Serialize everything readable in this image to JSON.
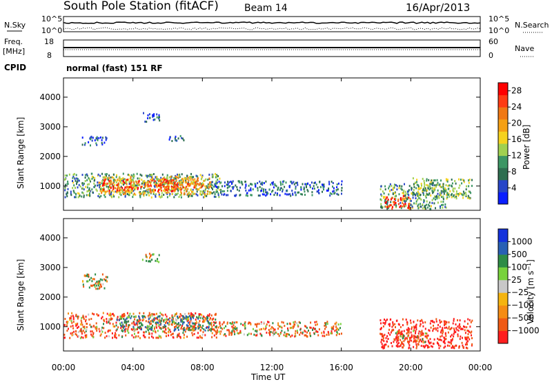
{
  "header": {
    "station": "South Pole Station (fitACF)",
    "beam": "Beam 14",
    "date": "16/Apr/2013",
    "cpid_label": "CPID",
    "program": "normal (fast) 151 RF"
  },
  "top_panel": {
    "left_label": "N.Sky",
    "right_label": "N.Search",
    "left_ticks": [
      "10^5",
      "10^0"
    ],
    "right_ticks": [
      "10^5",
      "10^0"
    ]
  },
  "freq_panel": {
    "left_label_1": "Freq.",
    "left_label_2": "[MHz]",
    "right_label": "Nave",
    "left_ticks": [
      "18",
      "8"
    ],
    "right_ticks": [
      "60",
      "0"
    ]
  },
  "colors": {
    "power": [
      "#0a1eff",
      "#2846c8",
      "#2e6e50",
      "#3c9664",
      "#a0d050",
      "#f5d21e",
      "#f5a014",
      "#f07814",
      "#ff3c14",
      "#ff0000"
    ],
    "velocity": [
      "#ff1e1e",
      "#f05a14",
      "#f58c14",
      "#f5b40f",
      "#c8c8c8",
      "#78d23c",
      "#2e8c46",
      "#2860b4",
      "#1432dc"
    ]
  },
  "chart_data": [
    {
      "type": "heatmap",
      "name": "power",
      "title": "",
      "xlabel": "",
      "ylabel": "Slant Range [km]",
      "x_ticks": [
        "00:00",
        "04:00",
        "08:00",
        "12:00",
        "16:00",
        "20:00",
        "00:00"
      ],
      "y_ticks": [
        "1000",
        "2000",
        "3000",
        "4000"
      ],
      "xlim": [
        0,
        24
      ],
      "ylim": [
        180,
        4650
      ],
      "colorbar_label": "Power [dB]",
      "colorbar_ticks": [
        "4",
        "8",
        "12",
        "16",
        "20",
        "24",
        "28"
      ],
      "colorbar_range": [
        0,
        30
      ],
      "regions": [
        {
          "t": [
            0,
            9
          ],
          "r": [
            650,
            1450
          ],
          "value": 10
        },
        {
          "t": [
            2,
            8.5
          ],
          "r": [
            750,
            1350
          ],
          "value": 18
        },
        {
          "t": [
            2.2,
            6.5
          ],
          "r": [
            850,
            1250
          ],
          "value": 26
        },
        {
          "t": [
            5.5,
            8
          ],
          "r": [
            900,
            1300
          ],
          "value": 22
        },
        {
          "t": [
            8.5,
            16
          ],
          "r": [
            700,
            1200
          ],
          "value": 6
        },
        {
          "t": [
            1,
            2.5
          ],
          "r": [
            2400,
            2700
          ],
          "value": 5
        },
        {
          "t": [
            4.5,
            5.5
          ],
          "r": [
            3200,
            3500
          ],
          "value": 4
        },
        {
          "t": [
            6,
            7
          ],
          "r": [
            2550,
            2750
          ],
          "value": 5
        },
        {
          "t": [
            18.2,
            22
          ],
          "r": [
            250,
            1100
          ],
          "value": 10
        },
        {
          "t": [
            18.5,
            20
          ],
          "r": [
            250,
            700
          ],
          "value": 26
        },
        {
          "t": [
            20,
            23.5
          ],
          "r": [
            600,
            1300
          ],
          "value": 12
        }
      ]
    },
    {
      "type": "heatmap",
      "name": "velocity",
      "title": "",
      "xlabel": "Time UT",
      "ylabel": "Slant Range [km]",
      "x_ticks": [
        "00:00",
        "04:00",
        "08:00",
        "12:00",
        "16:00",
        "20:00",
        "00:00"
      ],
      "y_ticks": [
        "1000",
        "2000",
        "3000",
        "4000"
      ],
      "xlim": [
        0,
        24
      ],
      "ylim": [
        180,
        4650
      ],
      "colorbar_label": "Velocity [m s^-1]",
      "colorbar_ticks": [
        "1000",
        "500",
        "100",
        "25",
        "−25",
        "−100",
        "−500",
        "−1000"
      ],
      "colorbar_range": [
        -1000,
        1000
      ],
      "regions": [
        {
          "t": [
            0,
            9
          ],
          "r": [
            650,
            1500
          ],
          "value": -300
        },
        {
          "t": [
            3,
            8.5
          ],
          "r": [
            900,
            1400
          ],
          "value": 400
        },
        {
          "t": [
            8.5,
            16
          ],
          "r": [
            700,
            1200
          ],
          "value": -200
        },
        {
          "t": [
            1,
            2.5
          ],
          "r": [
            2300,
            2800
          ],
          "value": 10
        },
        {
          "t": [
            4.5,
            5.5
          ],
          "r": [
            3200,
            3500
          ],
          "value": 0
        },
        {
          "t": [
            18.2,
            23.5
          ],
          "r": [
            300,
            1300
          ],
          "value": -700
        },
        {
          "t": [
            19,
            21
          ],
          "r": [
            500,
            900
          ],
          "value": -300
        }
      ]
    }
  ]
}
